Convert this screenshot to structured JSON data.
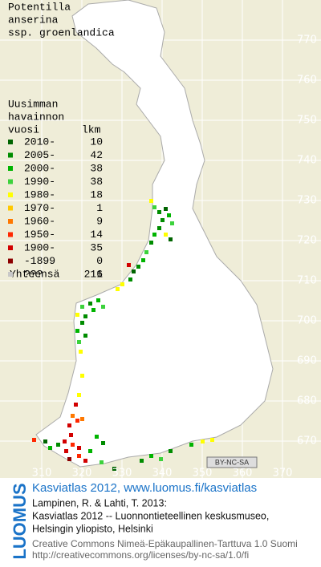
{
  "title": [
    "Potentilla",
    "anserina",
    "ssp. groenlandica"
  ],
  "legend": {
    "heading": [
      "Uusimman",
      "havainnon",
      "vuosi"
    ],
    "count_heading": "lkm",
    "rows": [
      {
        "label": "2010-",
        "count": 10,
        "color": "#006400"
      },
      {
        "label": "2005-",
        "count": 42,
        "color": "#008c00"
      },
      {
        "label": "2000-",
        "count": 38,
        "color": "#00b400"
      },
      {
        "label": "1990-",
        "count": 38,
        "color": "#3cd23c"
      },
      {
        "label": "1980-",
        "count": 18,
        "color": "#ffff00"
      },
      {
        "label": "1970-",
        "count": 1,
        "color": "#ffc800"
      },
      {
        "label": "1960-",
        "count": 9,
        "color": "#ff7800"
      },
      {
        "label": "1950-",
        "count": 14,
        "color": "#ff2800"
      },
      {
        "label": "1900-",
        "count": 35,
        "color": "#d20000"
      },
      {
        "label": "-1899",
        "count": 0,
        "color": "#8c0000"
      },
      {
        "label": "???",
        "count": 6,
        "color": "#c8c8c8"
      }
    ],
    "total_label": "Yhteensä",
    "total": 211
  },
  "map": {
    "y_ticks": [
      770,
      760,
      750,
      740,
      730,
      720,
      710,
      700,
      690,
      680,
      670
    ],
    "x_ticks": [
      310,
      320,
      330,
      340,
      350,
      360,
      370
    ]
  },
  "license_badge": "BY-NC-SA",
  "brand": "LUOMUS",
  "footer": {
    "link": "Kasviatlas 2012, www.luomus.fi/kasviatlas",
    "citation": [
      "Lampinen, R. & Lahti, T. 2013:",
      "Kasviatlas 2012 -- Luonnontieteellinen keskusmuseo,",
      "Helsingin yliopisto, Helsinki"
    ],
    "license": [
      "Creative Commons Nimeä-Epäkaupallinen-Tarttuva 1.0 Suomi",
      "http://creativecommons.org/licenses/by-nc-sa/1.0/fi"
    ]
  }
}
